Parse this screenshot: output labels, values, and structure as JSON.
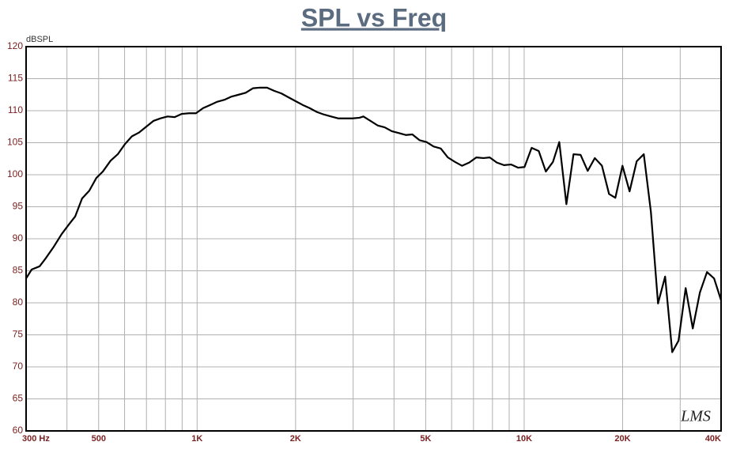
{
  "chart_data": {
    "type": "line",
    "title": "SPL vs Freq",
    "y_label": "dBSPL",
    "annotation": "LMS",
    "xscale": "log",
    "grid": true,
    "xlim": [
      300,
      40000
    ],
    "ylim": [
      60,
      120
    ],
    "yticks": [
      60,
      65,
      70,
      75,
      80,
      85,
      90,
      95,
      100,
      105,
      110,
      115,
      120
    ],
    "xticks": [
      {
        "value": 300,
        "label": "300 Hz"
      },
      500,
      {
        "value": 1000,
        "label": "1K"
      },
      {
        "value": 2000,
        "label": "2K"
      },
      {
        "value": 5000,
        "label": "5K"
      },
      {
        "value": 10000,
        "label": "10K"
      },
      {
        "value": 20000,
        "label": "20K"
      },
      {
        "value": 40000,
        "label": "40K"
      }
    ],
    "x_minor_ticks": [
      400,
      600,
      700,
      800,
      900,
      3000,
      4000,
      6000,
      7000,
      8000,
      9000,
      30000
    ],
    "series": [
      {
        "name": "SPL",
        "color": "#000000",
        "x": [
          300,
          312,
          330,
          345,
          365,
          385,
          405,
          424,
          445,
          468,
          492,
          515,
          544,
          572,
          602,
          632,
          665,
          699,
          735,
          773,
          812,
          854,
          898,
          944,
          992,
          1043,
          1097,
          1153,
          1212,
          1274,
          1340,
          1408,
          1481,
          1557,
          1636,
          1720,
          1809,
          1901,
          1999,
          2102,
          2209,
          2323,
          2442,
          2567,
          2699,
          2837,
          2983,
          3136,
          3224,
          3390,
          3563,
          3746,
          3938,
          4141,
          4353,
          4551,
          4785,
          5030,
          5288,
          5559,
          5845,
          6145,
          6460,
          6791,
          7140,
          7506,
          7848,
          8251,
          8674,
          9119,
          9587,
          10025,
          10539,
          11080,
          11649,
          12246,
          12805,
          13463,
          14154,
          14879,
          15643,
          16446,
          17289,
          18177,
          19004,
          19980,
          21005,
          22083,
          23216,
          24407,
          25660,
          26977,
          28361,
          29653,
          31174,
          32774,
          34455,
          36224,
          38083,
          40000
        ],
        "values": [
          83.8,
          85.2,
          85.7,
          87,
          88.8,
          90.7,
          92.2,
          93.5,
          96.3,
          97.5,
          99.5,
          100.5,
          102.2,
          103.2,
          104.8,
          106,
          106.6,
          107.5,
          108.4,
          108.8,
          109.1,
          109,
          109.5,
          109.6,
          109.6,
          110.4,
          110.9,
          111.4,
          111.7,
          112.2,
          112.5,
          112.8,
          113.5,
          113.6,
          113.6,
          113.1,
          112.7,
          112.1,
          111.5,
          110.9,
          110.4,
          109.8,
          109.4,
          109.1,
          108.8,
          108.8,
          108.8,
          108.9,
          109.1,
          108.4,
          107.7,
          107.4,
          106.8,
          106.5,
          106.2,
          106.3,
          105.4,
          105.1,
          104.4,
          104.1,
          102.7,
          102,
          101.4,
          101.9,
          102.7,
          102.6,
          102.7,
          101.9,
          101.5,
          101.6,
          101.1,
          101.2,
          104.2,
          103.7,
          100.5,
          102,
          105.1,
          95.4,
          103.2,
          103.1,
          100.6,
          102.6,
          101.4,
          97,
          96.4,
          101.4,
          97.4,
          102.1,
          103.2,
          94.2,
          79.9,
          84.1,
          72.3,
          74.1,
          82.3,
          76,
          81.6,
          84.8,
          83.8,
          80.4
        ]
      }
    ]
  }
}
